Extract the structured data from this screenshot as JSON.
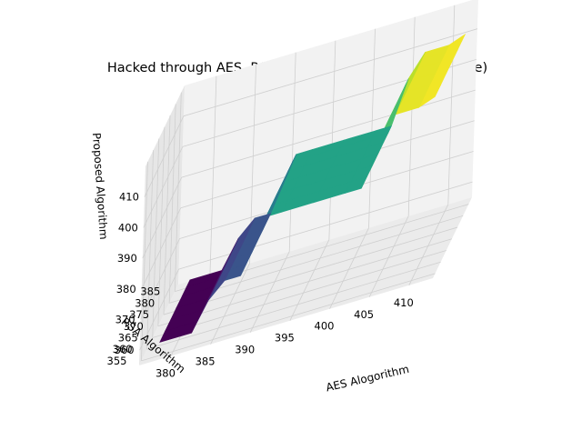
{
  "chart_data": {
    "type": "surface",
    "title": "Hacked through AES, RSA and Proposed Algorithm (Edge)",
    "xlabel": "AES Alogorithm",
    "ylabel": "RSA Algorithm",
    "zlabel": "Proposed Algorithm",
    "xticks": [
      "380",
      "385",
      "390",
      "395",
      "400",
      "405",
      "410"
    ],
    "yticks": [
      "355",
      "360",
      "365",
      "370",
      "375",
      "380",
      "385"
    ],
    "zticks": [
      "360",
      "370",
      "380",
      "390",
      "400",
      "410"
    ],
    "xlim": [
      376,
      413
    ],
    "ylim": [
      353,
      388
    ],
    "zlim": [
      355,
      420
    ],
    "colormap": "viridis",
    "grid": true,
    "surface": {
      "aes": [
        378,
        382,
        384,
        386,
        388,
        391,
        393,
        397,
        401,
        403,
        405,
        407,
        410,
        412
      ],
      "rsa": [
        357,
        362,
        367,
        372,
        377,
        381,
        384
      ],
      "proposed": [
        358,
        358,
        367,
        372,
        372,
        389,
        389,
        389,
        389,
        389,
        403,
        410,
        410,
        412
      ]
    }
  }
}
